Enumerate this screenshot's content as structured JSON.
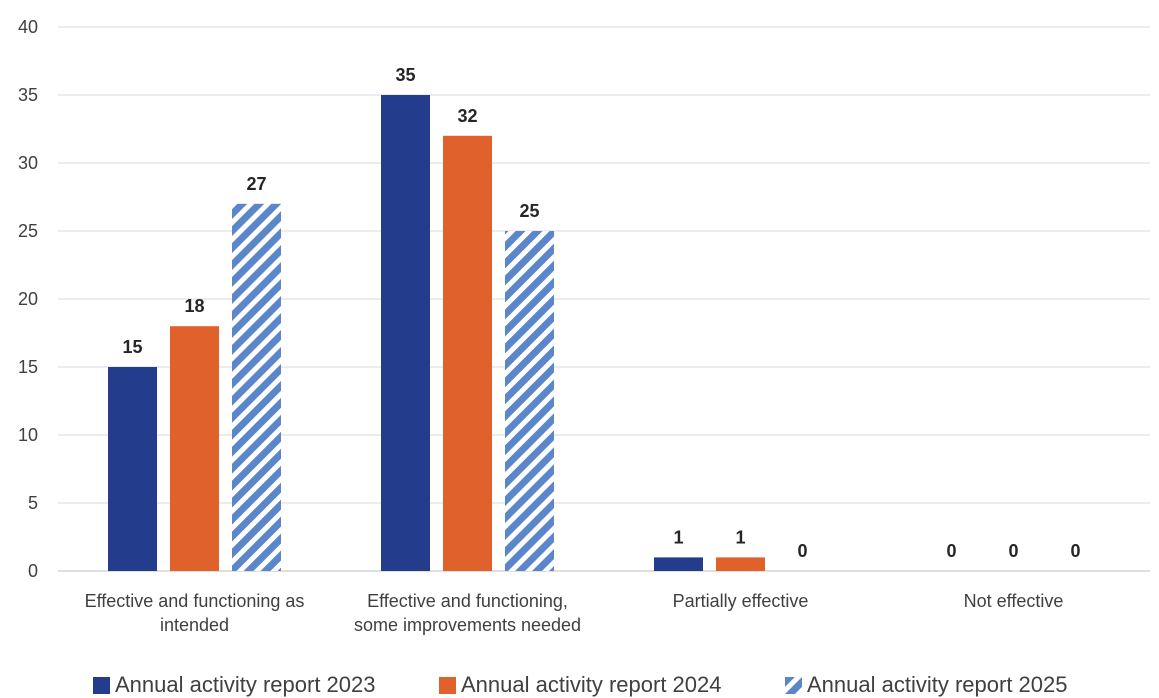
{
  "chart_data": {
    "type": "bar",
    "categories": [
      [
        "Effective and functioning as",
        "intended"
      ],
      [
        "Effective and functioning,",
        "some improvements needed"
      ],
      [
        "Partially effective"
      ],
      [
        "Not effective"
      ]
    ],
    "series": [
      {
        "name": "Annual activity report 2023",
        "values": [
          15,
          35,
          1,
          0
        ],
        "color": "#233C8C",
        "pattern": "solid"
      },
      {
        "name": "Annual activity report 2024",
        "values": [
          18,
          32,
          1,
          0
        ],
        "color": "#E0612B",
        "pattern": "solid"
      },
      {
        "name": "Annual activity report 2025",
        "values": [
          27,
          25,
          0,
          0
        ],
        "color": "#5B86C9",
        "pattern": "diagonal-stripes"
      }
    ],
    "yticks": [
      "0",
      "5",
      "10",
      "15",
      "20",
      "25",
      "30",
      "35",
      "40"
    ],
    "ylim": [
      0,
      40
    ],
    "grid": true,
    "legend_position": "bottom"
  }
}
